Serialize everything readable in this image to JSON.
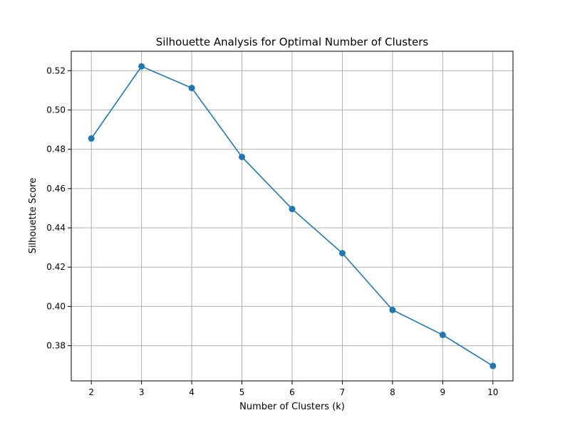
{
  "chart_data": {
    "type": "line",
    "title": "Silhouette Analysis for Optimal Number of Clusters",
    "xlabel": "Number of Clusters (k)",
    "ylabel": "Silhouette Score",
    "x": [
      2,
      3,
      4,
      5,
      6,
      7,
      8,
      9,
      10
    ],
    "series": [
      {
        "values": [
          0.4855,
          0.5222,
          0.5112,
          0.4761,
          0.4496,
          0.4271,
          0.3982,
          0.3855,
          0.3697
        ]
      }
    ],
    "xlim": [
      1.6,
      10.4
    ],
    "ylim": [
      0.3621,
      0.5299
    ],
    "x_ticks": [
      "2",
      "3",
      "4",
      "5",
      "6",
      "7",
      "8",
      "9",
      "10"
    ],
    "y_ticks": [
      "0.38",
      "0.40",
      "0.42",
      "0.44",
      "0.46",
      "0.48",
      "0.50",
      "0.52"
    ],
    "grid": true,
    "marker": "circle",
    "colors": {
      "series": "#1f77b4",
      "grid": "#b0b0b0",
      "axes": "#000000"
    }
  }
}
